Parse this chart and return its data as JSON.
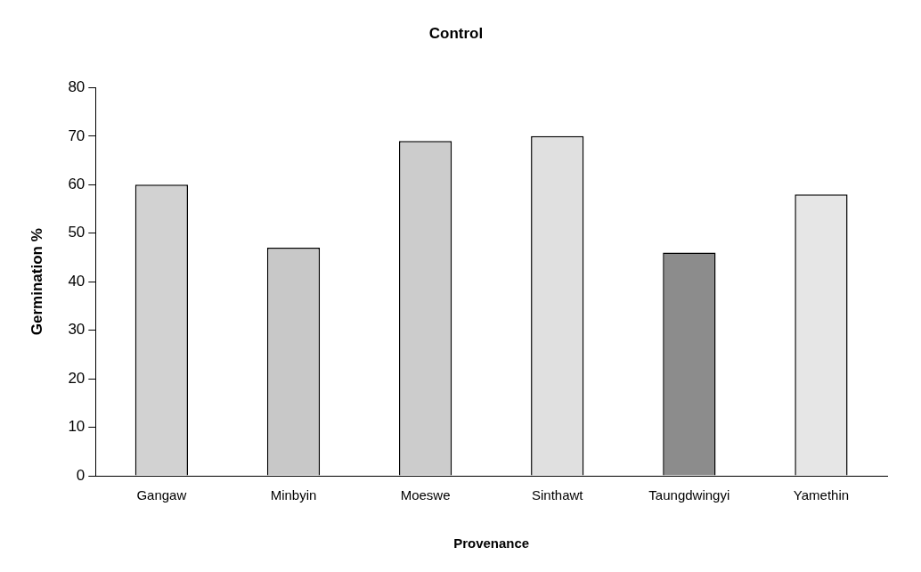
{
  "chart_data": {
    "type": "bar",
    "title": "Control",
    "xlabel": "Provenance",
    "ylabel": "Germination %",
    "categories": [
      "Gangaw",
      "Minbyin",
      "Moeswe",
      "Sinthawt",
      "Taungdwingyi",
      "Yamethin"
    ],
    "values": [
      60,
      47,
      69,
      70,
      46,
      58
    ],
    "colors": [
      "#d2d2d2",
      "#c8c8c8",
      "#cccccc",
      "#e0e0e0",
      "#8c8c8c",
      "#e6e6e6"
    ],
    "ylim": [
      0,
      80
    ],
    "yticks": [
      0,
      10,
      20,
      30,
      40,
      50,
      60,
      70,
      80
    ],
    "grid": false,
    "legend": false
  }
}
